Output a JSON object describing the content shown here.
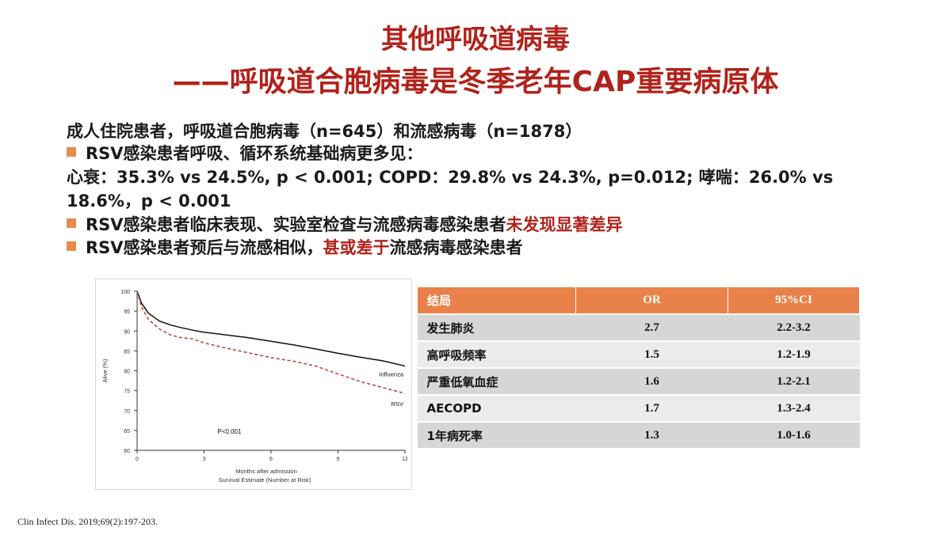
{
  "slide": {
    "title_line1": "其他呼吸道病毒",
    "title_line2": "——呼吸道合胞病毒是冬季老年CAP重要病原体",
    "intro": "成人住院患者，呼吸道合胞病毒（n=645）和流感病毒（n=1878）",
    "bullet1": "RSV感染患者呼吸、循环系统基础病更多见：",
    "detail_line1": "心衰：35.3% vs 24.5%, p < 0.001; COPD：29.8% vs 24.3%, p=0.012; 哮喘：26.0% vs",
    "detail_line2": "18.6%，p < 0.001",
    "bullet2_prefix": "RSV感染患者临床表现、实验室检查与流感病毒感染患者",
    "bullet2_highlight": "未发现显著差异",
    "bullet3_prefix": "RSV感染患者预后与流感相似，",
    "bullet3_highlight": "甚或差于",
    "bullet3_suffix": "流感病毒感染患者",
    "citation": "Clin Infect Dis. 2019;69(2):197-203.",
    "accent_color": "#b0231b",
    "bullet_color": "#e48d4c"
  },
  "chart_data": {
    "type": "line",
    "xlabel": "Months after admission",
    "sublabel": "Survival Estimate (Number at Risk)",
    "ylabel": "Alive (%)",
    "xlim": [
      0,
      12
    ],
    "ylim": [
      60,
      100
    ],
    "xticks": [
      0,
      3,
      6,
      9,
      12
    ],
    "yticks": [
      60,
      65,
      70,
      75,
      80,
      85,
      90,
      95,
      100
    ],
    "annotation": "P<0.001",
    "series": [
      {
        "name": "Influenza",
        "style": "solid",
        "color": "#111111",
        "x": [
          0,
          0.2,
          0.5,
          1,
          1.5,
          2,
          2.5,
          3,
          4,
          5,
          6,
          7,
          8,
          9,
          10,
          11,
          12
        ],
        "y": [
          100,
          97,
          94.5,
          92.5,
          91.5,
          90.8,
          90.2,
          89.7,
          89,
          88.3,
          87.4,
          86.5,
          85.5,
          84.4,
          83.4,
          82.5,
          81.2
        ]
      },
      {
        "name": "RSV",
        "style": "dashed",
        "color": "#c0392b",
        "x": [
          0,
          0.2,
          0.5,
          1,
          1.5,
          2,
          2.5,
          3,
          4,
          5,
          6,
          7,
          8,
          9,
          10,
          11,
          12
        ],
        "y": [
          100,
          96,
          93,
          90.5,
          89,
          88.3,
          88,
          87,
          85.7,
          84.5,
          83.3,
          82.4,
          81.2,
          79.2,
          77.3,
          75.8,
          74.3
        ]
      }
    ]
  },
  "or_table": {
    "headers": [
      "结局",
      "OR",
      "95%CI"
    ],
    "rows": [
      {
        "outcome": "发生肺炎",
        "or": "2.7",
        "ci": "2.2-3.2"
      },
      {
        "outcome": "高呼吸频率",
        "or": "1.5",
        "ci": "1.2-1.9"
      },
      {
        "outcome": "严重低氧血症",
        "or": "1.6",
        "ci": "1.2-2.1"
      },
      {
        "outcome": "AECOPD",
        "or": "1.7",
        "ci": "1.3-2.4"
      },
      {
        "outcome": "1年病死率",
        "or": "1.3",
        "ci": "1.0-1.6"
      }
    ]
  }
}
